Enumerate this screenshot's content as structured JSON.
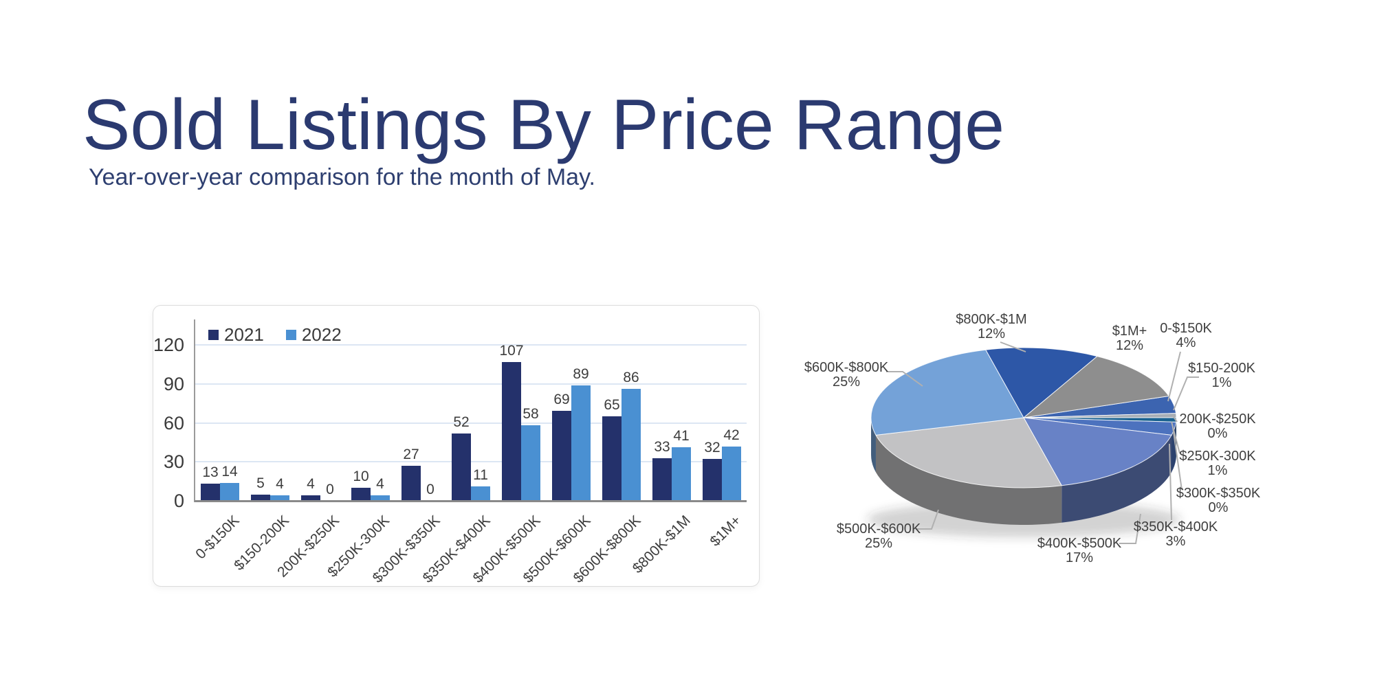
{
  "slide": {
    "title": "Sold Listings By Price Range",
    "subtitle": "Year-over-year comparison for the month of May."
  },
  "chart_data": [
    {
      "type": "bar",
      "title": "",
      "categories": [
        "0-$150K",
        "$150-200K",
        "200K-$250K",
        "$250K-300K",
        "$300K-$350K",
        "$350K-$400K",
        "$400K-$500K",
        "$500K-$600K",
        "$600K-$800K",
        "$800K-$1M",
        "$1M+"
      ],
      "series": [
        {
          "name": "2021",
          "color": "#24316B",
          "values": [
            13,
            5,
            4,
            10,
            27,
            52,
            107,
            69,
            65,
            33,
            32
          ]
        },
        {
          "name": "2022",
          "color": "#4A90D2",
          "values": [
            14,
            4,
            0,
            4,
            0,
            11,
            58,
            89,
            86,
            41,
            42
          ]
        }
      ],
      "ylim": [
        0,
        120
      ],
      "yticks": [
        0,
        30,
        60,
        90,
        120
      ],
      "grid": true,
      "legend_position": "top-left",
      "gridline_color": "#dce6f3",
      "axis_color": "#9a9a9a"
    },
    {
      "type": "pie",
      "style": "3d",
      "start_angle_deg": 72,
      "unit": "%",
      "labels": [
        "0-$150K",
        "$150-200K",
        "200K-$250K",
        "$250K-300K",
        "$300K-$350K",
        "$350K-$400K",
        "$400K-$500K",
        "$500K-$600K",
        "$600K-$800K",
        "$800K-$1M",
        "$1M+"
      ],
      "values": [
        4,
        1,
        0,
        1,
        0,
        3,
        17,
        25,
        25,
        12,
        12
      ],
      "colors": [
        "#3C64B0",
        "#A7AEB6",
        "#CBD2D8",
        "#1A6290",
        "#9DC3E6",
        "#4C72BE",
        "#6882C6",
        "#C2C2C4",
        "#74A2D8",
        "#2D57A7",
        "#8E8E8E"
      ],
      "leader_line_color": "#b0b0b0"
    }
  ]
}
